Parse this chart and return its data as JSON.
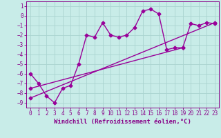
{
  "title": "",
  "xlabel": "Windchill (Refroidissement éolien,°C)",
  "ylabel": "",
  "bg_color": "#c8ece8",
  "grid_color": "#aad4d0",
  "line_color": "#990099",
  "xlim": [
    -0.5,
    23.5
  ],
  "ylim": [
    -9.5,
    1.5
  ],
  "yticks": [
    1,
    0,
    -1,
    -2,
    -3,
    -4,
    -5,
    -6,
    -7,
    -8,
    -9
  ],
  "xticks": [
    0,
    1,
    2,
    3,
    4,
    5,
    6,
    7,
    8,
    9,
    10,
    11,
    12,
    13,
    14,
    15,
    16,
    17,
    18,
    19,
    20,
    21,
    22,
    23
  ],
  "line1_x": [
    0,
    1,
    2,
    3,
    4,
    5,
    6,
    7,
    8,
    9,
    10,
    11,
    12,
    13,
    14,
    15,
    16,
    17,
    18,
    19,
    20,
    21,
    22,
    23
  ],
  "line1_y": [
    -6.0,
    -7.0,
    -8.3,
    -9.0,
    -7.5,
    -7.2,
    -5.0,
    -2.0,
    -2.2,
    -0.7,
    -2.0,
    -2.2,
    -2.0,
    -1.2,
    0.5,
    0.7,
    0.2,
    -3.5,
    -3.3,
    -3.3,
    -0.8,
    -1.0,
    -0.7,
    -0.8
  ],
  "line2_x": [
    0,
    19
  ],
  "line2_y": [
    -7.5,
    -3.3
  ],
  "line3_x": [
    0,
    23
  ],
  "line3_y": [
    -8.5,
    -0.7
  ],
  "marker": "D",
  "markersize": 2.5,
  "linewidth": 1.0,
  "font_color": "#880088",
  "tick_fontsize": 5.5,
  "label_fontsize": 6.5
}
